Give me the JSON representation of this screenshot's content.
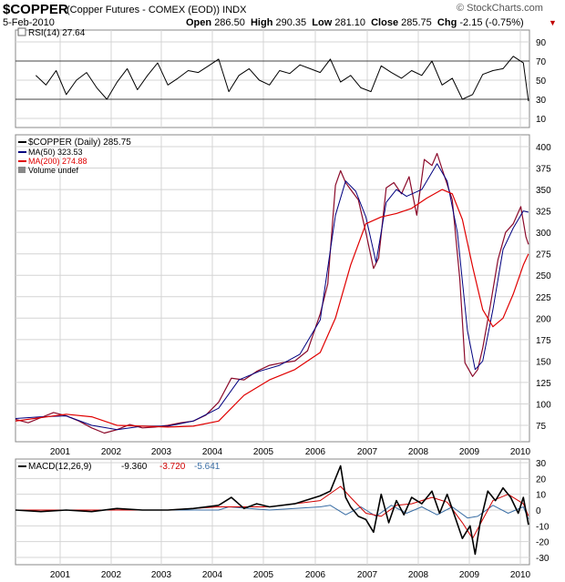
{
  "header": {
    "symbol": "$COPPER",
    "subtitle": "(Copper Futures - COMEX (EOD)) INDX",
    "date": "5-Feb-2010",
    "open_label": "Open",
    "open": "286.50",
    "high_label": "High",
    "high": "290.35",
    "low_label": "Low",
    "low": "281.10",
    "close_label": "Close",
    "close": "285.75",
    "chg_label": "Chg",
    "chg": "-2.15 (-0.75%)",
    "brand": "© StockCharts.com",
    "chg_icon": "down-triangle-icon"
  },
  "colors": {
    "price": "#8b0a2a",
    "ma50": "#00007f",
    "ma200": "#e00000",
    "macd": "#000000",
    "signal": "#d00000",
    "histogram": "#3a6ea5",
    "grid": "#d4d4d4",
    "rsi_fill": "#4a8a3a"
  },
  "chart_data": [
    {
      "type": "line",
      "panel": "rsi",
      "legend": "RSI(14) 27.64",
      "ylim": [
        10,
        90
      ],
      "yticks": [
        10,
        30,
        50,
        70,
        90
      ],
      "reference_lines": [
        30,
        70
      ],
      "x": [
        2000.4,
        2000.6,
        2000.8,
        2001.0,
        2001.2,
        2001.4,
        2001.6,
        2001.8,
        2002.0,
        2002.2,
        2002.4,
        2002.6,
        2002.8,
        2003.0,
        2003.2,
        2003.4,
        2003.6,
        2003.8,
        2004.0,
        2004.2,
        2004.4,
        2004.6,
        2004.8,
        2005.0,
        2005.2,
        2005.4,
        2005.6,
        2005.8,
        2006.0,
        2006.2,
        2006.4,
        2006.6,
        2006.8,
        2007.0,
        2007.2,
        2007.4,
        2007.6,
        2007.8,
        2008.0,
        2008.2,
        2008.4,
        2008.6,
        2008.8,
        2009.0,
        2009.2,
        2009.4,
        2009.6,
        2009.8,
        2010.0,
        2010.1
      ],
      "values": [
        55,
        45,
        60,
        35,
        50,
        58,
        42,
        30,
        48,
        62,
        40,
        55,
        68,
        45,
        52,
        60,
        58,
        65,
        72,
        38,
        55,
        62,
        50,
        45,
        60,
        57,
        66,
        62,
        58,
        72,
        48,
        55,
        42,
        38,
        65,
        58,
        52,
        60,
        55,
        70,
        45,
        52,
        30,
        35,
        56,
        60,
        62,
        75,
        68,
        28
      ]
    },
    {
      "type": "line",
      "panel": "price",
      "title": "$COPPER (Daily) 285.75",
      "ylim": [
        50,
        400
      ],
      "yticks": [
        75,
        100,
        125,
        150,
        175,
        200,
        225,
        250,
        275,
        300,
        325,
        350,
        375,
        400
      ],
      "x_ticks": [
        "2001",
        "2002",
        "2003",
        "2004",
        "2005",
        "2006",
        "2007",
        "2008",
        "2009",
        "2010"
      ],
      "legend": [
        {
          "name": "MA(50) 323.53"
        },
        {
          "name": "MA(200) 274.88"
        },
        {
          "name": "Volume undef"
        }
      ],
      "series": [
        {
          "name": "$COPPER (Daily)",
          "x": [
            2000.0,
            2000.25,
            2000.5,
            2000.75,
            2001.0,
            2001.25,
            2001.5,
            2001.75,
            2002.0,
            2002.25,
            2002.5,
            2002.75,
            2003.0,
            2003.25,
            2003.5,
            2003.75,
            2004.0,
            2004.25,
            2004.5,
            2004.75,
            2005.0,
            2005.25,
            2005.5,
            2005.75,
            2006.0,
            2006.15,
            2006.3,
            2006.4,
            2006.5,
            2006.6,
            2006.75,
            2006.9,
            2007.05,
            2007.15,
            2007.3,
            2007.45,
            2007.6,
            2007.75,
            2007.9,
            2008.05,
            2008.2,
            2008.3,
            2008.45,
            2008.6,
            2008.75,
            2008.85,
            2009.0,
            2009.1,
            2009.2,
            2009.35,
            2009.5,
            2009.65,
            2009.8,
            2009.95,
            2010.05,
            2010.1
          ],
          "y": [
            82,
            78,
            84,
            90,
            86,
            80,
            72,
            66,
            70,
            76,
            72,
            73,
            75,
            78,
            80,
            87,
            102,
            130,
            128,
            138,
            145,
            148,
            150,
            162,
            205,
            240,
            355,
            372,
            358,
            350,
            338,
            300,
            258,
            270,
            352,
            358,
            345,
            365,
            320,
            385,
            378,
            392,
            365,
            338,
            245,
            148,
            132,
            140,
            165,
            215,
            268,
            300,
            310,
            330,
            295,
            286
          ]
        },
        {
          "name": "MA(50)",
          "x": [
            2000.0,
            2000.5,
            2001.0,
            2001.5,
            2002.0,
            2002.5,
            2003.0,
            2003.5,
            2004.0,
            2004.4,
            2004.8,
            2005.2,
            2005.6,
            2006.0,
            2006.3,
            2006.5,
            2006.7,
            2006.9,
            2007.1,
            2007.3,
            2007.5,
            2007.7,
            2008.0,
            2008.3,
            2008.5,
            2008.7,
            2008.9,
            2009.05,
            2009.2,
            2009.4,
            2009.6,
            2009.8,
            2010.0,
            2010.1
          ],
          "y": [
            83,
            85,
            86,
            75,
            70,
            74,
            74,
            80,
            95,
            128,
            138,
            145,
            158,
            198,
            320,
            360,
            348,
            318,
            265,
            335,
            350,
            342,
            350,
            380,
            360,
            300,
            185,
            140,
            150,
            210,
            280,
            305,
            325,
            323.53
          ]
        },
        {
          "name": "MA(200)",
          "x": [
            2000.0,
            2000.5,
            2001.0,
            2001.5,
            2002.0,
            2002.5,
            2003.0,
            2003.5,
            2004.0,
            2004.5,
            2005.0,
            2005.5,
            2006.0,
            2006.3,
            2006.6,
            2006.9,
            2007.2,
            2007.5,
            2007.8,
            2008.1,
            2008.4,
            2008.6,
            2008.8,
            2009.0,
            2009.2,
            2009.4,
            2009.6,
            2009.8,
            2010.0,
            2010.1
          ],
          "y": [
            80,
            84,
            88,
            85,
            75,
            74,
            73,
            74,
            80,
            110,
            128,
            140,
            160,
            200,
            262,
            310,
            318,
            322,
            328,
            340,
            350,
            345,
            315,
            260,
            210,
            190,
            200,
            228,
            262,
            274.88
          ]
        }
      ]
    },
    {
      "type": "line",
      "panel": "macd",
      "legend": "MACD(12,26,9)",
      "values_text": [
        "-9.360",
        "-3.720",
        "-5.641"
      ],
      "ylim": [
        -30,
        30
      ],
      "yticks": [
        -30,
        -20,
        -10,
        0,
        10,
        20,
        30
      ],
      "x_ticks": [
        "2001",
        "2002",
        "2003",
        "2004",
        "2005",
        "2006",
        "2007",
        "2008",
        "2009",
        "2010"
      ],
      "series": [
        {
          "name": "MACD",
          "x": [
            2000.0,
            2000.5,
            2001.0,
            2001.5,
            2002.0,
            2002.5,
            2003.0,
            2003.5,
            2004.0,
            2004.25,
            2004.5,
            2004.75,
            2005.0,
            2005.5,
            2006.0,
            2006.2,
            2006.4,
            2006.5,
            2006.6,
            2006.75,
            2006.9,
            2007.05,
            2007.2,
            2007.35,
            2007.5,
            2007.65,
            2007.8,
            2008.0,
            2008.2,
            2008.35,
            2008.5,
            2008.65,
            2008.8,
            2008.95,
            2009.05,
            2009.15,
            2009.3,
            2009.45,
            2009.6,
            2009.75,
            2009.9,
            2010.0,
            2010.1
          ],
          "y": [
            0,
            -1,
            0,
            -1,
            1,
            0,
            0,
            1,
            3,
            8,
            1,
            4,
            2,
            4,
            9,
            12,
            28,
            8,
            2,
            -4,
            -6,
            -14,
            10,
            -8,
            6,
            -3,
            8,
            4,
            12,
            -2,
            10,
            -4,
            -18,
            -10,
            -28,
            -8,
            12,
            6,
            14,
            8,
            -2,
            8,
            -9.36
          ]
        },
        {
          "name": "Signal",
          "x": [
            2000.0,
            2001.0,
            2002.0,
            2003.0,
            2004.0,
            2005.0,
            2006.0,
            2006.4,
            2006.6,
            2006.9,
            2007.2,
            2007.5,
            2007.8,
            2008.2,
            2008.5,
            2008.8,
            2009.0,
            2009.2,
            2009.4,
            2009.7,
            2010.0,
            2010.1
          ],
          "y": [
            0,
            0,
            0,
            0,
            2,
            2,
            6,
            15,
            8,
            -2,
            -4,
            3,
            4,
            8,
            5,
            -8,
            -18,
            -6,
            6,
            10,
            4,
            -3.72
          ]
        },
        {
          "name": "Histogram",
          "x": [
            2000.0,
            2002.0,
            2004.0,
            2004.2,
            2005.0,
            2006.0,
            2006.2,
            2006.5,
            2006.8,
            2007.1,
            2007.4,
            2007.7,
            2008.0,
            2008.3,
            2008.6,
            2008.9,
            2009.1,
            2009.4,
            2009.7,
            2010.0,
            2010.1
          ],
          "y": [
            0,
            0,
            0,
            2,
            0,
            2,
            3,
            -3,
            2,
            -4,
            3,
            -2,
            2,
            -3,
            2,
            -5,
            -4,
            3,
            -2,
            2,
            -5.641
          ]
        }
      ]
    }
  ]
}
